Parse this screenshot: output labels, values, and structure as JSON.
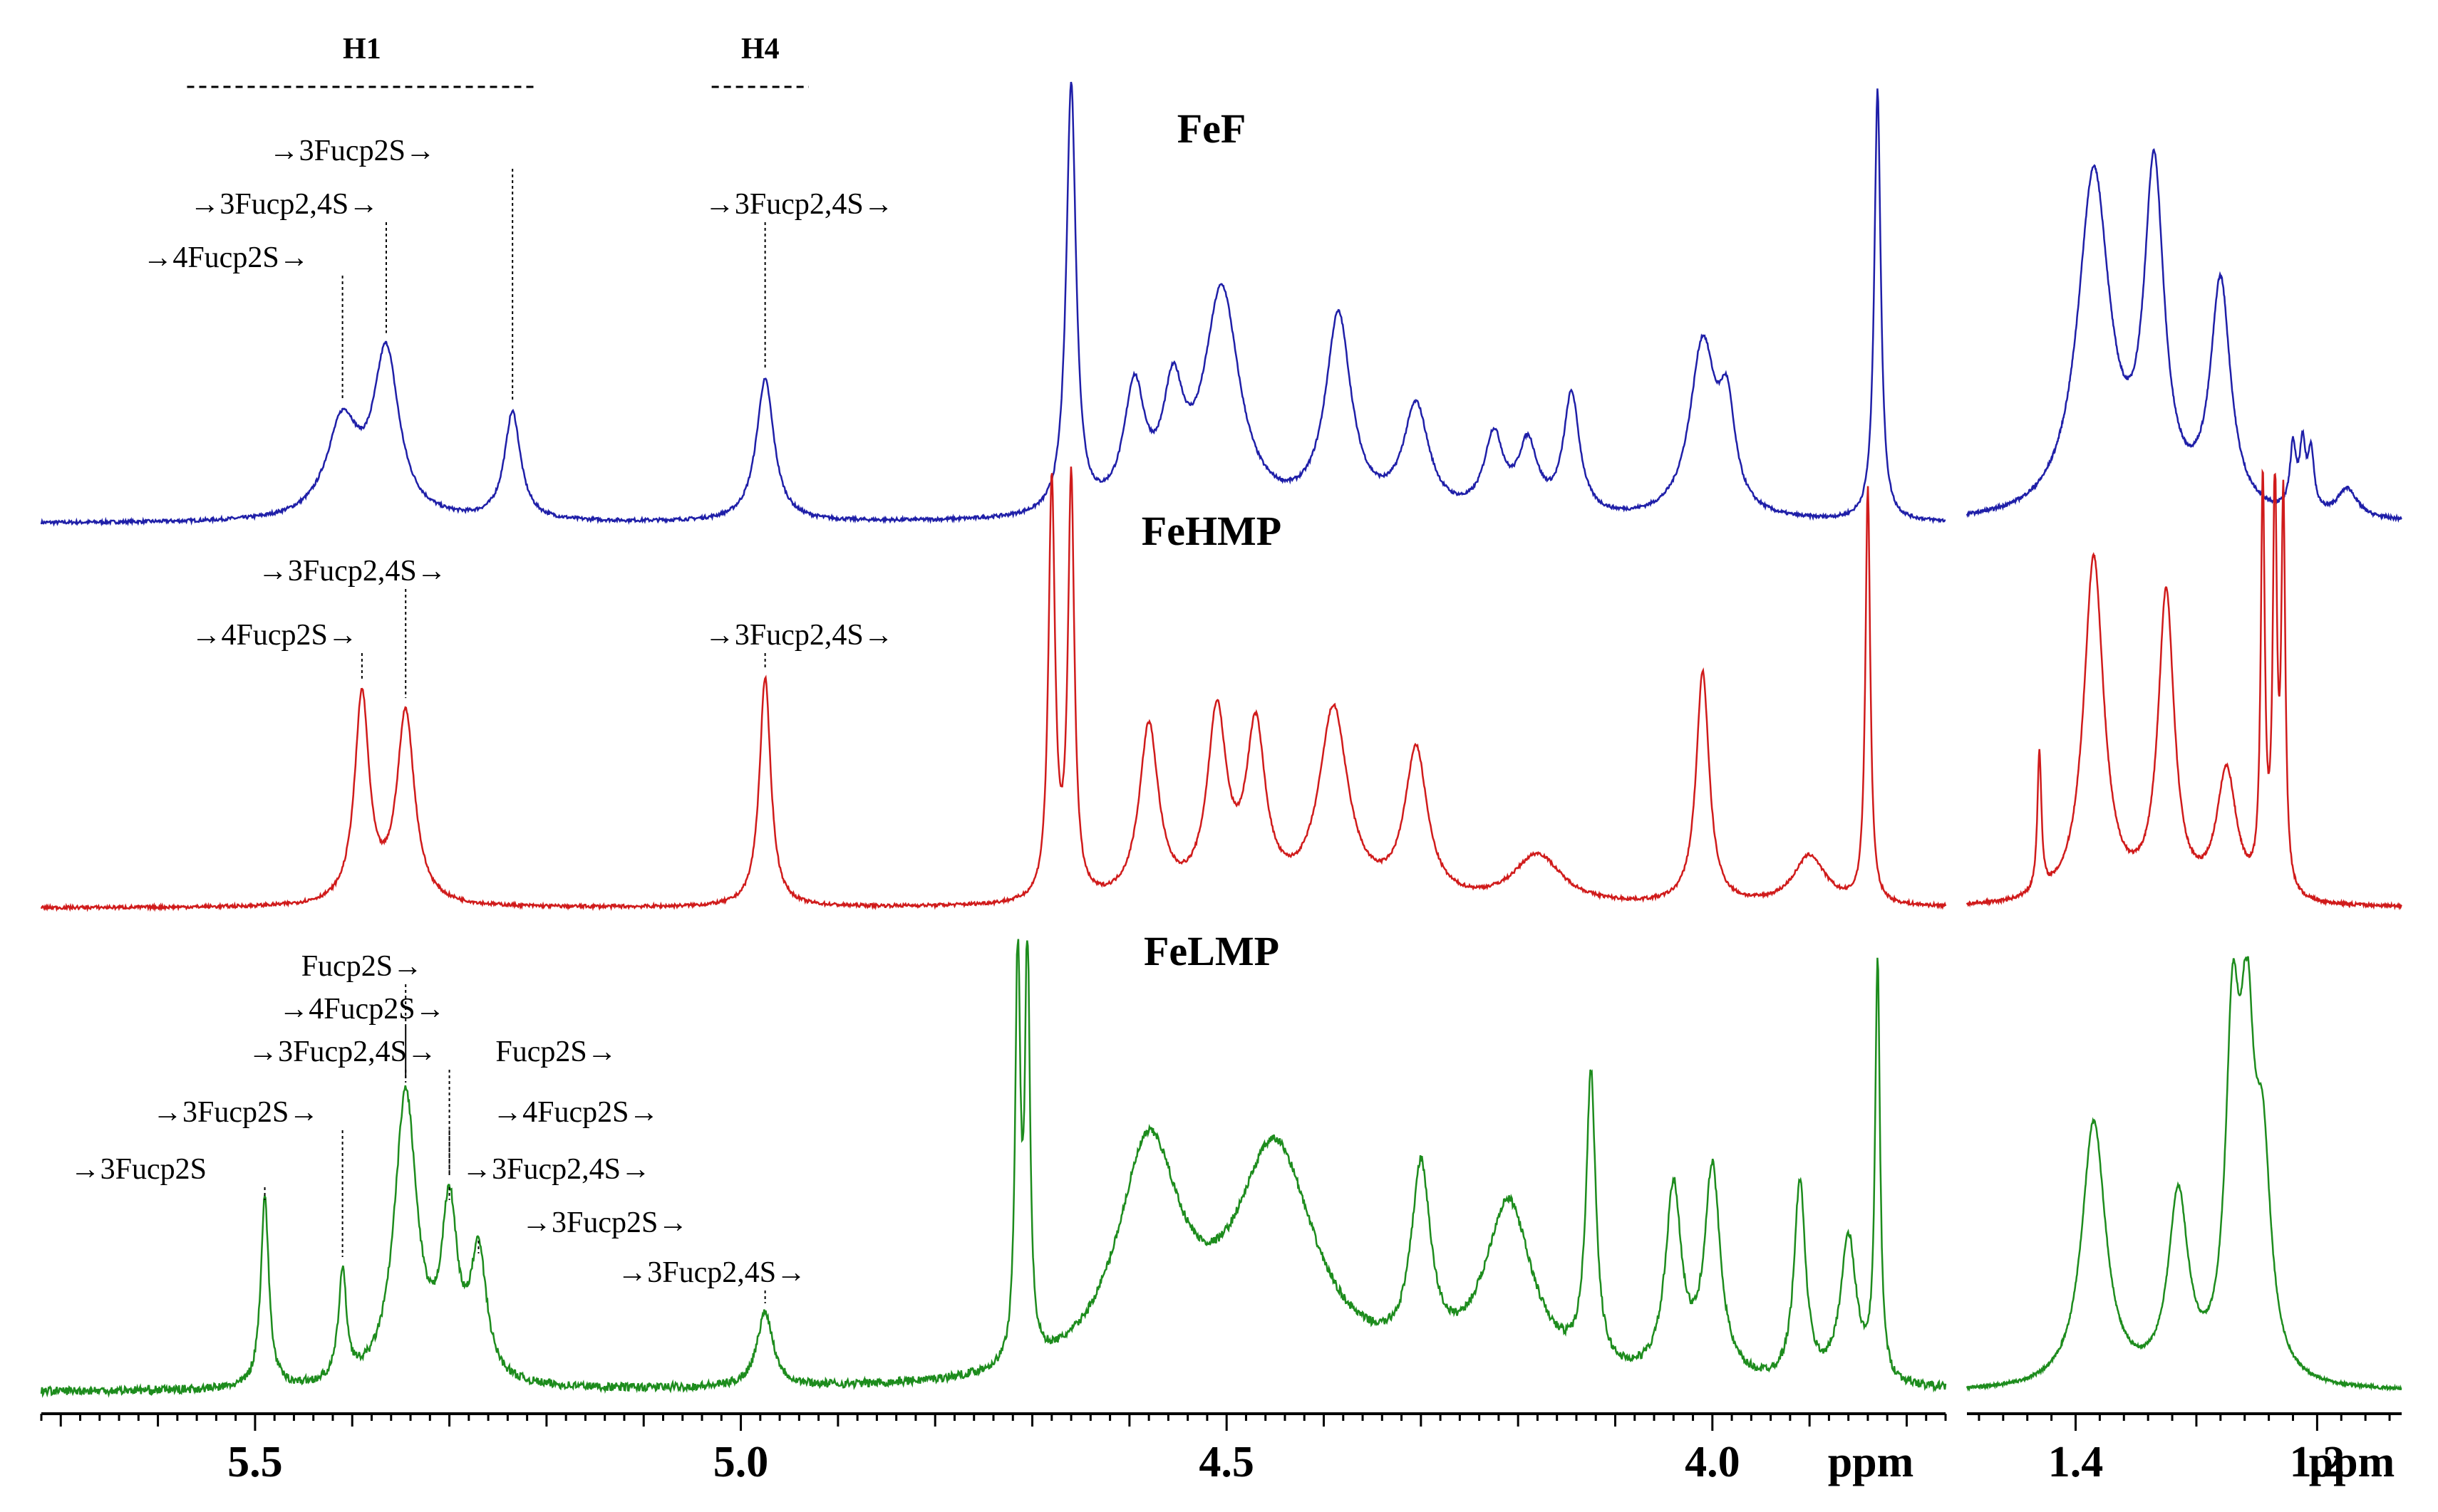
{
  "chart_data": {
    "type": "line",
    "xunit": "ppm",
    "x_reversed": true,
    "region_headers": [
      {
        "label": "H1",
        "from": 5.57,
        "to": 5.21
      },
      {
        "label": "H4",
        "from": 5.03,
        "to": 4.93
      }
    ],
    "left_axis": {
      "xlim": [
        5.72,
        3.76
      ],
      "major_ticks": [
        5.5,
        5.0,
        4.5,
        4.0
      ],
      "tick_labels": [
        "5.5",
        "5.0",
        "4.5",
        "4.0"
      ],
      "unit_label": "ppm"
    },
    "right_axis": {
      "xlim": [
        1.49,
        1.13
      ],
      "major_ticks": [
        1.4,
        1.2
      ],
      "tick_labels": [
        "1.4",
        "1.2"
      ],
      "unit_label": "ppm"
    },
    "series": [
      {
        "name": "FeF",
        "color": "#1f1fa8",
        "peaks": [
          {
            "x": 5.41,
            "h": 0.22,
            "w": 0.02
          },
          {
            "x": 5.365,
            "h": 0.38,
            "w": 0.016
          },
          {
            "x": 5.235,
            "h": 0.25,
            "w": 0.01
          },
          {
            "x": 4.975,
            "h": 0.33,
            "w": 0.011
          },
          {
            "x": 4.66,
            "h": 1.0,
            "w": 0.006
          },
          {
            "x": 4.595,
            "h": 0.28,
            "w": 0.013
          },
          {
            "x": 4.555,
            "h": 0.25,
            "w": 0.013
          },
          {
            "x": 4.505,
            "h": 0.52,
            "w": 0.022
          },
          {
            "x": 4.385,
            "h": 0.46,
            "w": 0.016
          },
          {
            "x": 4.305,
            "h": 0.25,
            "w": 0.016
          },
          {
            "x": 4.225,
            "h": 0.18,
            "w": 0.012
          },
          {
            "x": 4.19,
            "h": 0.16,
            "w": 0.012
          },
          {
            "x": 4.145,
            "h": 0.28,
            "w": 0.01
          },
          {
            "x": 4.01,
            "h": 0.4,
            "w": 0.016
          },
          {
            "x": 3.985,
            "h": 0.22,
            "w": 0.01
          },
          {
            "x": 3.83,
            "h": 1.0,
            "w": 0.004
          }
        ],
        "right_peaks": [
          {
            "x": 1.385,
            "h": 0.82,
            "w": 0.016
          },
          {
            "x": 1.335,
            "h": 0.8,
            "w": 0.01
          },
          {
            "x": 1.28,
            "h": 0.55,
            "w": 0.01
          },
          {
            "x": 1.22,
            "h": 0.15,
            "w": 0.003
          },
          {
            "x": 1.212,
            "h": 0.15,
            "w": 0.003
          },
          {
            "x": 1.205,
            "h": 0.14,
            "w": 0.003
          },
          {
            "x": 1.175,
            "h": 0.07,
            "w": 0.01
          }
        ],
        "annotations": [
          {
            "text": "→3Fucp2S→",
            "peak_x": 5.235,
            "label_x": 5.4,
            "row": 0
          },
          {
            "text": "→3Fucp2,4S→",
            "peak_x": 5.365,
            "label_x": 5.47,
            "row": 1
          },
          {
            "text": "→4Fucp2S→",
            "peak_x": 5.41,
            "label_x": 5.53,
            "row": 2
          },
          {
            "text": "→3Fucp2,4S→",
            "peak_x": 4.975,
            "label_x": 4.94,
            "row": 1
          }
        ]
      },
      {
        "name": "FeHMP",
        "color": "#d01b1b",
        "peaks": [
          {
            "x": 5.39,
            "h": 0.5,
            "w": 0.009
          },
          {
            "x": 5.345,
            "h": 0.46,
            "w": 0.011
          },
          {
            "x": 4.975,
            "h": 0.55,
            "w": 0.007
          },
          {
            "x": 4.68,
            "h": 1.0,
            "w": 0.004
          },
          {
            "x": 4.66,
            "h": 1.0,
            "w": 0.004
          },
          {
            "x": 4.58,
            "h": 0.42,
            "w": 0.012
          },
          {
            "x": 4.51,
            "h": 0.44,
            "w": 0.012
          },
          {
            "x": 4.47,
            "h": 0.4,
            "w": 0.012
          },
          {
            "x": 4.39,
            "h": 0.46,
            "w": 0.018
          },
          {
            "x": 4.305,
            "h": 0.36,
            "w": 0.014
          },
          {
            "x": 4.18,
            "h": 0.12,
            "w": 0.03
          },
          {
            "x": 4.01,
            "h": 0.56,
            "w": 0.008
          },
          {
            "x": 3.9,
            "h": 0.12,
            "w": 0.02
          },
          {
            "x": 3.84,
            "h": 1.0,
            "w": 0.003
          }
        ],
        "right_peaks": [
          {
            "x": 1.385,
            "h": 0.86,
            "w": 0.01
          },
          {
            "x": 1.325,
            "h": 0.76,
            "w": 0.008
          },
          {
            "x": 1.275,
            "h": 0.32,
            "w": 0.01
          },
          {
            "x": 1.245,
            "h": 1.0,
            "w": 0.002
          },
          {
            "x": 1.235,
            "h": 1.0,
            "w": 0.002
          },
          {
            "x": 1.228,
            "h": 0.95,
            "w": 0.002
          },
          {
            "x": 1.43,
            "h": 0.35,
            "w": 0.002
          }
        ],
        "annotations": [
          {
            "text": "→3Fucp2,4S→",
            "peak_x": 5.345,
            "label_x": 5.4,
            "row": 0
          },
          {
            "text": "→4Fucp2S→",
            "peak_x": 5.39,
            "label_x": 5.48,
            "row": 1
          },
          {
            "text": "→3Fucp2,4S→",
            "peak_x": 4.975,
            "label_x": 4.94,
            "row": 1
          }
        ]
      },
      {
        "name": "FeLMP",
        "color": "#1d8c1d",
        "peaks": [
          {
            "x": 5.49,
            "h": 0.46,
            "w": 0.005
          },
          {
            "x": 5.41,
            "h": 0.26,
            "w": 0.005
          },
          {
            "x": 5.345,
            "h": 0.7,
            "w": 0.014
          },
          {
            "x": 5.3,
            "h": 0.4,
            "w": 0.01
          },
          {
            "x": 5.27,
            "h": 0.3,
            "w": 0.01
          },
          {
            "x": 4.975,
            "h": 0.18,
            "w": 0.01
          },
          {
            "x": 4.715,
            "h": 1.0,
            "w": 0.003
          },
          {
            "x": 4.705,
            "h": 1.0,
            "w": 0.003
          },
          {
            "x": 4.58,
            "h": 0.55,
            "w": 0.04
          },
          {
            "x": 4.45,
            "h": 0.55,
            "w": 0.05
          },
          {
            "x": 4.3,
            "h": 0.45,
            "w": 0.012
          },
          {
            "x": 4.21,
            "h": 0.42,
            "w": 0.03
          },
          {
            "x": 4.125,
            "h": 0.7,
            "w": 0.006
          },
          {
            "x": 4.04,
            "h": 0.45,
            "w": 0.01
          },
          {
            "x": 4.0,
            "h": 0.5,
            "w": 0.01
          },
          {
            "x": 3.91,
            "h": 0.48,
            "w": 0.007
          },
          {
            "x": 3.86,
            "h": 0.35,
            "w": 0.01
          },
          {
            "x": 3.83,
            "h": 1.0,
            "w": 0.003
          }
        ],
        "right_peaks": [
          {
            "x": 1.385,
            "h": 0.66,
            "w": 0.012
          },
          {
            "x": 1.315,
            "h": 0.46,
            "w": 0.01
          },
          {
            "x": 1.27,
            "h": 0.8,
            "w": 0.007
          },
          {
            "x": 1.258,
            "h": 0.74,
            "w": 0.007
          },
          {
            "x": 1.245,
            "h": 0.5,
            "w": 0.008
          }
        ],
        "annotations": [
          {
            "text": "Fucp2S→",
            "peak_x": 5.345,
            "label_x": 5.39,
            "row": 0
          },
          {
            "text": "→4Fucp2S→",
            "peak_x": 5.345,
            "label_x": 5.39,
            "row": 1
          },
          {
            "text": "→3Fucp2,4S→",
            "peak_x": 5.345,
            "label_x": 5.41,
            "row": 2
          },
          {
            "text": "Fucp2S→",
            "peak_x": 5.3,
            "label_x": 5.19,
            "row": 2
          },
          {
            "text": "→3Fucp2S→",
            "peak_x": 5.41,
            "label_x": 5.52,
            "row": 3
          },
          {
            "text": "→4Fucp2S→",
            "peak_x": 5.3,
            "label_x": 5.17,
            "row": 3
          },
          {
            "text": "→3Fucp2S",
            "peak_x": 5.49,
            "label_x": 5.62,
            "row": 4
          },
          {
            "text": "→3Fucp2,4S→",
            "peak_x": 5.3,
            "label_x": 5.19,
            "row": 4
          },
          {
            "text": "→3Fucp2S→",
            "peak_x": 5.27,
            "label_x": 5.14,
            "row": 5
          },
          {
            "text": "→3Fucp2,4S→",
            "peak_x": 4.975,
            "label_x": 5.03,
            "row": 6
          }
        ]
      }
    ]
  }
}
